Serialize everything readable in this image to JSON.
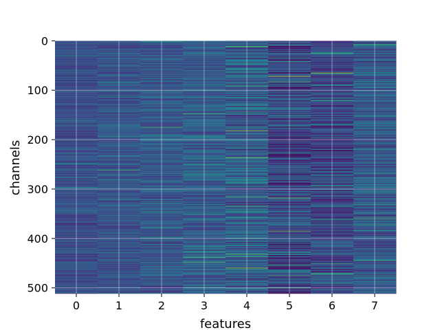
{
  "chart_data": {
    "type": "heatmap",
    "title": "",
    "xlabel": "features",
    "ylabel": "channels",
    "x_categories": [
      "0",
      "1",
      "2",
      "3",
      "4",
      "5",
      "6",
      "7"
    ],
    "y_range": [
      0,
      512
    ],
    "y_ticks": [
      "0",
      "100",
      "200",
      "300",
      "400",
      "500"
    ],
    "grid": true,
    "colormap": "viridis",
    "columns": [
      {
        "feature": "0",
        "base_level": 0.24,
        "spread": 0.1,
        "highlights": []
      },
      {
        "feature": "1",
        "base_level": 0.26,
        "spread": 0.1,
        "highlights": [
          {
            "channel": 262,
            "level": 0.7
          }
        ]
      },
      {
        "feature": "2",
        "base_level": 0.27,
        "spread": 0.12,
        "highlights": [
          {
            "channel": 175,
            "level": 0.72
          },
          {
            "channel": 378,
            "level": 0.6
          }
        ]
      },
      {
        "feature": "3",
        "base_level": 0.3,
        "spread": 0.14,
        "highlights": [
          {
            "channel": 148,
            "level": 0.7
          },
          {
            "channel": 438,
            "level": 0.72
          },
          {
            "channel": 448,
            "level": 0.72
          }
        ]
      },
      {
        "feature": "4",
        "base_level": 0.3,
        "spread": 0.2,
        "highlights": [
          {
            "channel": 12,
            "level": 0.75
          },
          {
            "channel": 182,
            "level": 0.85
          },
          {
            "channel": 335,
            "level": 0.7
          },
          {
            "channel": 460,
            "level": 0.88
          }
        ]
      },
      {
        "feature": "5",
        "base_level": 0.22,
        "spread": 0.2,
        "highlights": [
          {
            "channel": 72,
            "level": 0.9
          },
          {
            "channel": 83,
            "level": 0.72
          },
          {
            "channel": 318,
            "level": 0.78
          },
          {
            "channel": 385,
            "level": 0.82
          },
          {
            "channel": 475,
            "level": 0.7
          }
        ]
      },
      {
        "feature": "6",
        "base_level": 0.22,
        "spread": 0.18,
        "highlights": [
          {
            "channel": 65,
            "level": 0.88
          },
          {
            "channel": 472,
            "level": 0.65
          }
        ]
      },
      {
        "feature": "7",
        "base_level": 0.28,
        "spread": 0.17,
        "highlights": [
          {
            "channel": 8,
            "level": 0.7
          },
          {
            "channel": 360,
            "level": 0.7
          },
          {
            "channel": 445,
            "level": 0.68
          }
        ]
      }
    ]
  }
}
